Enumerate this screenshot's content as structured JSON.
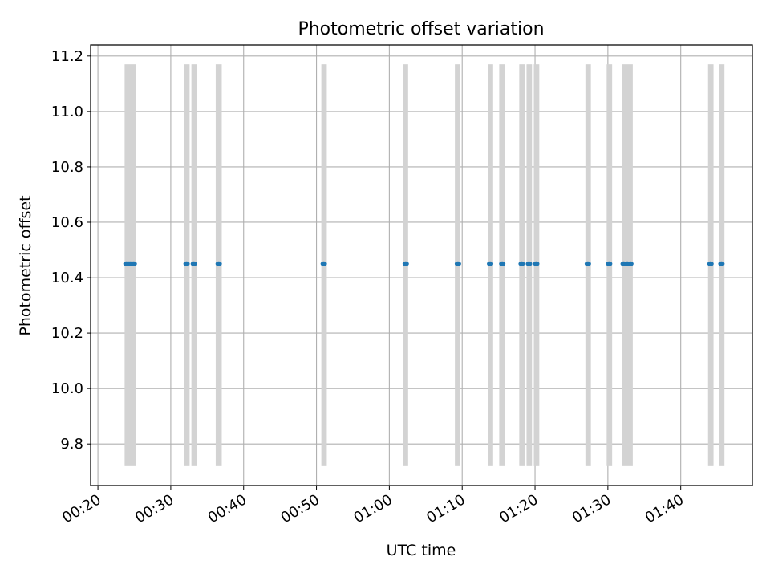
{
  "chart_data": {
    "type": "scatter",
    "title": "Photometric offset variation",
    "xlabel": "UTC time",
    "ylabel": "Photometric offset",
    "xlim": [
      "00:19:00",
      "01:49:50"
    ],
    "ylim": [
      9.65,
      11.24
    ],
    "x_ticks": [
      "00:20",
      "00:30",
      "00:40",
      "00:50",
      "01:00",
      "01:10",
      "01:20",
      "01:30",
      "01:40"
    ],
    "y_ticks": [
      "9.8",
      "10.0",
      "10.2",
      "10.4",
      "10.6",
      "10.8",
      "11.0",
      "11.2"
    ],
    "grid": true,
    "colors": {
      "points": "#1f77b4",
      "bands": "#d3d3d3",
      "grid": "#b0b0b0"
    },
    "bands": {
      "y_range": [
        9.72,
        11.17
      ],
      "intervals": [
        [
          "00:23:40",
          "00:25:10"
        ],
        [
          "00:31:50",
          "00:32:35"
        ],
        [
          "00:32:50",
          "00:33:35"
        ],
        [
          "00:36:10",
          "00:37:00"
        ],
        [
          "00:50:40",
          "00:51:25"
        ],
        [
          "01:01:50",
          "01:02:35"
        ],
        [
          "01:09:00",
          "01:09:45"
        ],
        [
          "01:13:30",
          "01:14:15"
        ],
        [
          "01:15:05",
          "01:15:50"
        ],
        [
          "01:17:50",
          "01:18:35"
        ],
        [
          "01:18:50",
          "01:19:35"
        ],
        [
          "01:19:50",
          "01:20:35"
        ],
        [
          "01:26:55",
          "01:27:40"
        ],
        [
          "01:29:50",
          "01:30:35"
        ],
        [
          "01:31:55",
          "01:33:25"
        ],
        [
          "01:43:45",
          "01:44:30"
        ],
        [
          "01:45:15",
          "01:46:00"
        ]
      ]
    },
    "series": [
      {
        "x": [
          "00:23:55",
          "00:24:10",
          "00:24:25",
          "00:24:40",
          "00:24:55",
          "00:32:10",
          "00:33:10",
          "00:36:35",
          "00:51:00",
          "01:02:15",
          "01:09:25",
          "01:13:50",
          "01:15:30",
          "01:18:10",
          "01:19:10",
          "01:20:10",
          "01:27:15",
          "01:30:10",
          "01:32:10",
          "01:32:40",
          "01:33:05",
          "01:44:05",
          "01:45:35"
        ],
        "y": [
          10.45,
          10.45,
          10.45,
          10.45,
          10.45,
          10.45,
          10.45,
          10.45,
          10.45,
          10.45,
          10.45,
          10.45,
          10.45,
          10.45,
          10.45,
          10.45,
          10.45,
          10.45,
          10.45,
          10.45,
          10.45,
          10.45,
          10.45
        ]
      }
    ]
  }
}
